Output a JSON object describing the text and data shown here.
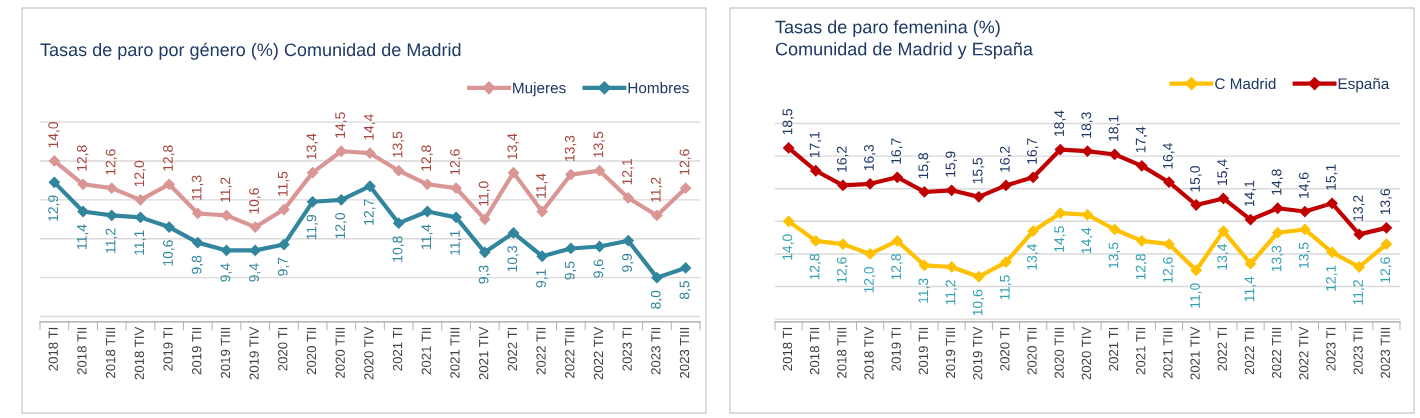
{
  "chart_data": [
    {
      "type": "line",
      "title": "Tasas de paro por género (%) Comunidad de Madrid",
      "categories": [
        "2018 TI",
        "2018 TII",
        "2018 TIII",
        "2018 TIV",
        "2019 TI",
        "2019 TII",
        "2019 TIII",
        "2019 TIV",
        "2020 TI",
        "2020 TII",
        "2020 TIII",
        "2020 TIV",
        "2021 TI",
        "2021 TII",
        "2021 TIII",
        "2021 TIV",
        "2022 TI",
        "2022 TII",
        "2022 TIII",
        "2022 TIV",
        "2023 TI",
        "2023 TII",
        "2023 TIII"
      ],
      "series": [
        {
          "name": "Mujeres",
          "color": "#d99694",
          "values": [
            14.0,
            12.8,
            12.6,
            12.0,
            12.8,
            11.3,
            11.2,
            10.6,
            11.5,
            13.4,
            14.5,
            14.4,
            13.5,
            12.8,
            12.6,
            11.0,
            13.4,
            11.4,
            13.3,
            13.5,
            12.1,
            11.2,
            12.6
          ],
          "value_labels": [
            "14,0",
            "12,8",
            "12,6",
            "12,0",
            "12,8",
            "11,3",
            "11,2",
            "10,6",
            "11,5",
            "13,4",
            "14,5",
            "14,4",
            "13,5",
            "12,8",
            "12,6",
            "11,0",
            "13,4",
            "11,4",
            "13,3",
            "13,5",
            "12,1",
            "11,2",
            "12,6"
          ]
        },
        {
          "name": "Hombres",
          "color": "#31859c",
          "values": [
            12.9,
            11.4,
            11.2,
            11.1,
            10.6,
            9.8,
            9.4,
            9.4,
            9.7,
            11.9,
            12.0,
            12.7,
            10.8,
            11.4,
            11.1,
            9.3,
            10.3,
            9.1,
            9.5,
            9.6,
            9.9,
            8.0,
            8.5
          ],
          "value_labels": [
            "12,9",
            "11,4",
            "11,2",
            "11,1",
            "10,6",
            "9,8",
            "9,4",
            "9,4",
            "9,7",
            "11,9",
            "12,0",
            "12,7",
            "10,8",
            "11,4",
            "11,1",
            "9,3",
            "10,3",
            "9,1",
            "9,5",
            "9,6",
            "9,9",
            "8,0",
            "8,5"
          ]
        }
      ],
      "tick_labels": "x",
      "grid": "y",
      "legend": "top right",
      "marker": "diamond",
      "line_style": "solid"
    },
    {
      "type": "line",
      "title": "Tasas de paro femenina (%)\nComunidad de Madrid y España",
      "categories": [
        "2018 TI",
        "2018 TII",
        "2018 TIII",
        "2018 TIV",
        "2019 TI",
        "2019 TII",
        "2019 TIII",
        "2019 TIV",
        "2020 TI",
        "2020 TII",
        "2020 TIII",
        "2020 TIV",
        "2021 TI",
        "2021 TII",
        "2021 TIII",
        "2021 TIV",
        "2022 TI",
        "2022 TII",
        "2022 TIII",
        "2022 TIV",
        "2023 TI",
        "2023 TII",
        "2023 TIII"
      ],
      "series": [
        {
          "name": "C Madrid",
          "color": "#ffc000",
          "values": [
            14.0,
            12.8,
            12.6,
            12.0,
            12.8,
            11.3,
            11.2,
            10.6,
            11.5,
            13.4,
            14.5,
            14.4,
            13.5,
            12.8,
            12.6,
            11.0,
            13.4,
            11.4,
            13.3,
            13.5,
            12.1,
            11.2,
            12.6
          ],
          "value_labels": [
            "14,0",
            "12,8",
            "12,6",
            "12,0",
            "12,8",
            "11,3",
            "11,2",
            "10,6",
            "11,5",
            "13,4",
            "14,5",
            "14,4",
            "13,5",
            "12,8",
            "12,6",
            "11,0",
            "13,4",
            "11,4",
            "13,3",
            "13,5",
            "12,1",
            "11,2",
            "12,6"
          ]
        },
        {
          "name": "España",
          "color": "#c00000",
          "values": [
            18.5,
            17.1,
            16.2,
            16.3,
            16.7,
            15.8,
            15.9,
            15.5,
            16.2,
            16.7,
            18.4,
            18.3,
            18.1,
            17.4,
            16.4,
            15.0,
            15.4,
            14.1,
            14.8,
            14.6,
            15.1,
            13.2,
            13.6
          ],
          "value_labels": [
            "18,5",
            "17,1",
            "16,2",
            "16,3",
            "16,7",
            "15,8",
            "15,9",
            "15,5",
            "16,2",
            "16,7",
            "18,4",
            "18,3",
            "18,1",
            "17,4",
            "16,4",
            "15,0",
            "15,4",
            "14,1",
            "14,8",
            "14,6",
            "15,1",
            "13,2",
            "13,6"
          ]
        }
      ],
      "tick_labels": "x",
      "grid": "y",
      "legend": "top right",
      "marker": "diamond",
      "line_style": "solid"
    }
  ]
}
